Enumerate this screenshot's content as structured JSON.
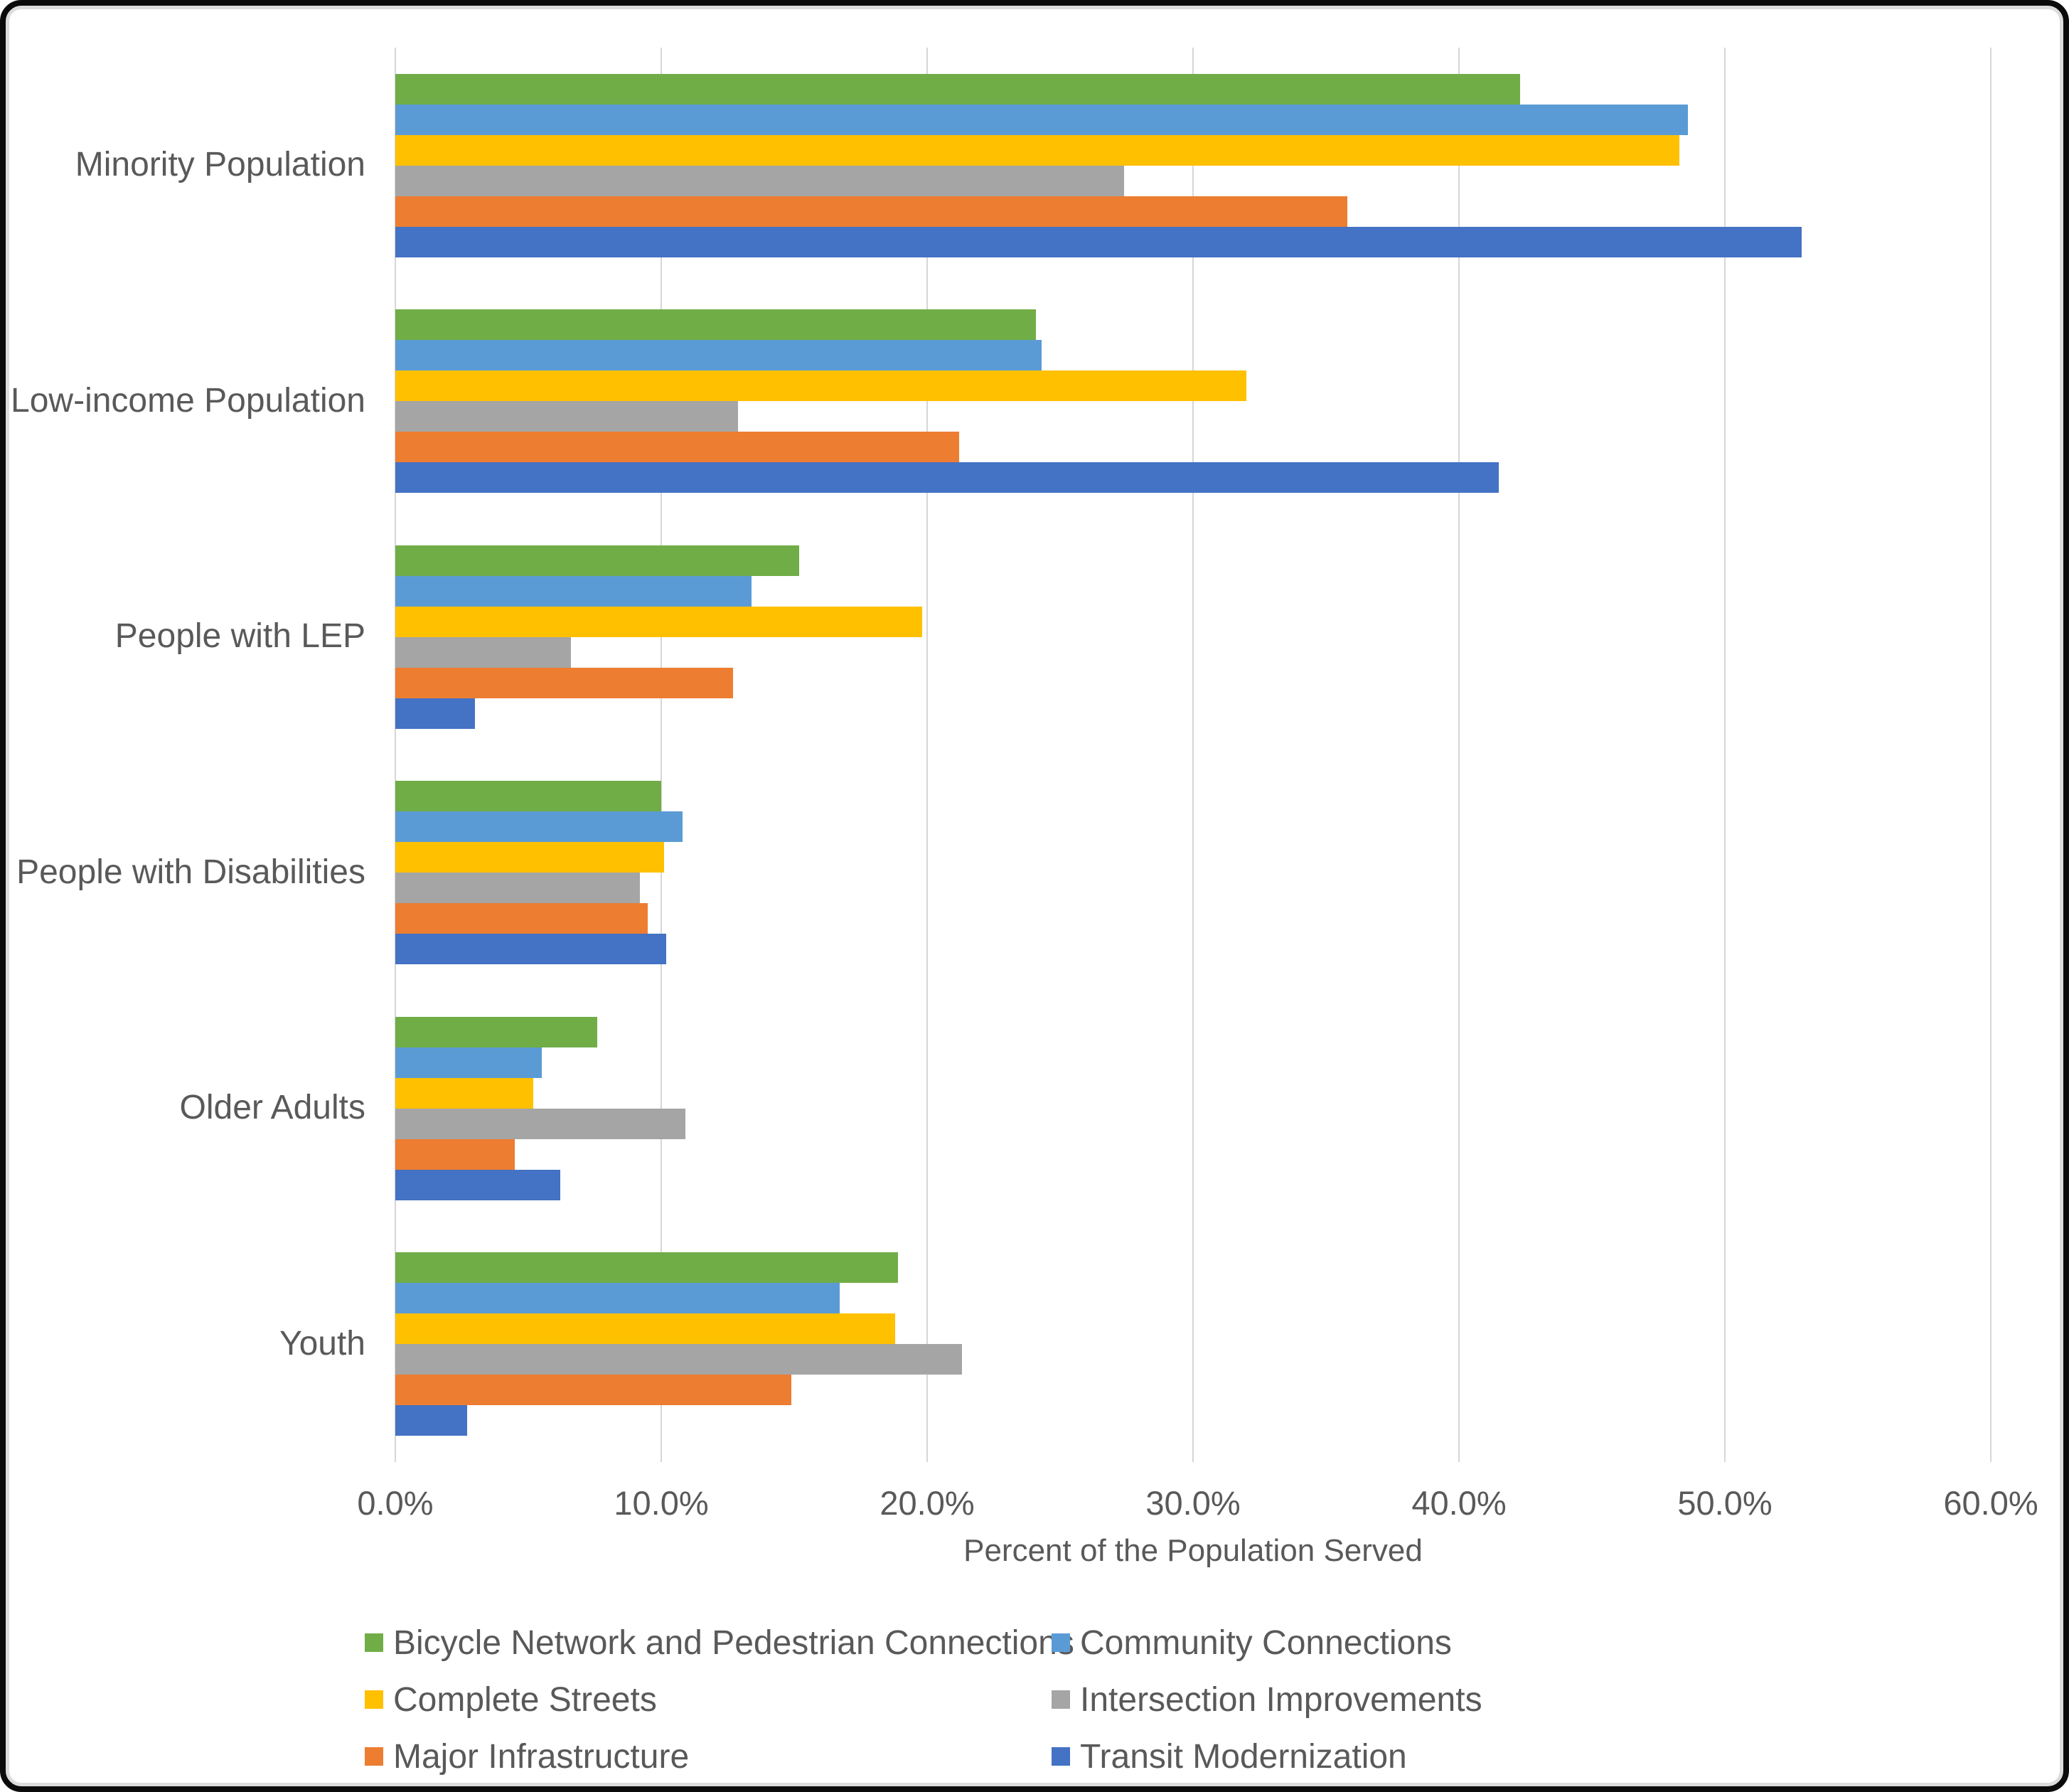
{
  "frame": {
    "background": "#FFFFFF",
    "border_color": "#0B0B0B",
    "inner_edge_color": "#DCDCDC"
  },
  "chart_data": {
    "type": "bar",
    "orientation": "horizontal",
    "title": "",
    "xlabel": "Percent of the Population Served",
    "ylabel": "",
    "categories": [
      "Minority Population",
      "Low-income Population",
      "People with LEP",
      "People with Disabilities",
      "Older Adults",
      "Youth"
    ],
    "series": [
      {
        "name": "Bicycle Network and Pedestrian Connections",
        "color": "#70AD47",
        "values": [
          42.3,
          24.1,
          15.2,
          10.0,
          7.6,
          18.9
        ]
      },
      {
        "name": "Community Connections",
        "color": "#5B9BD5",
        "values": [
          48.6,
          24.3,
          13.4,
          10.8,
          5.5,
          16.7
        ]
      },
      {
        "name": "Complete Streets",
        "color": "#FFC000",
        "values": [
          48.3,
          32.0,
          19.8,
          10.1,
          5.2,
          18.8
        ]
      },
      {
        "name": "Intersection Improvements",
        "color": "#A5A5A5",
        "values": [
          27.4,
          12.9,
          6.6,
          9.2,
          10.9,
          21.3
        ]
      },
      {
        "name": "Major Infrastructure",
        "color": "#ED7D31",
        "values": [
          35.8,
          21.2,
          12.7,
          9.5,
          4.5,
          14.9
        ]
      },
      {
        "name": "Transit Modernization",
        "color": "#4472C4",
        "values": [
          52.9,
          41.5,
          3.0,
          10.2,
          6.2,
          2.7
        ]
      }
    ],
    "x_ticks": [
      "0.0%",
      "10.0%",
      "20.0%",
      "30.0%",
      "40.0%",
      "50.0%",
      "60.0%"
    ],
    "xlim": [
      0,
      60
    ],
    "grid": "vertical",
    "gridline_color": "#D6D6D6",
    "text_color": "#595959",
    "legend_position": "bottom",
    "legend_columns": 2
  }
}
